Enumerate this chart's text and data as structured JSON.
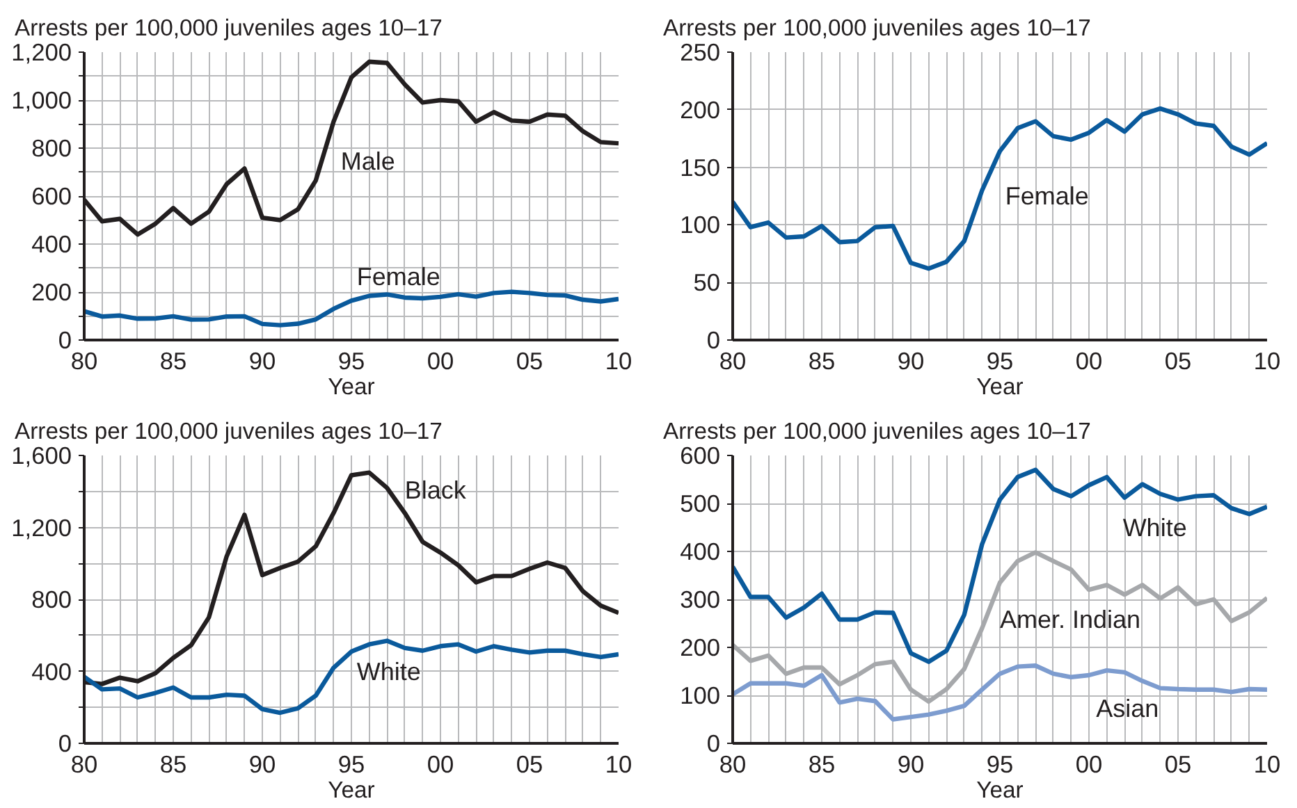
{
  "chart_data": [
    {
      "type": "line",
      "title": "Arrests per 100,000 juveniles ages 10–17",
      "xlabel": "Year",
      "grid": true,
      "legend": false,
      "marker": "none",
      "line_style": "solid",
      "x": [
        1980,
        1981,
        1982,
        1983,
        1984,
        1985,
        1986,
        1987,
        1988,
        1989,
        1990,
        1991,
        1992,
        1993,
        1994,
        1995,
        1996,
        1997,
        1998,
        1999,
        2000,
        2001,
        2002,
        2003,
        2004,
        2005,
        2006,
        2007,
        2008,
        2009,
        2010
      ],
      "xlim": [
        1980,
        2010
      ],
      "xticks": [
        {
          "value": 1980,
          "label": "80"
        },
        {
          "value": 1981,
          "label": null
        },
        {
          "value": 1982,
          "label": null
        },
        {
          "value": 1983,
          "label": null
        },
        {
          "value": 1984,
          "label": null
        },
        {
          "value": 1985,
          "label": "85"
        },
        {
          "value": 1986,
          "label": null
        },
        {
          "value": 1987,
          "label": null
        },
        {
          "value": 1988,
          "label": null
        },
        {
          "value": 1989,
          "label": null
        },
        {
          "value": 1990,
          "label": "90"
        },
        {
          "value": 1991,
          "label": null
        },
        {
          "value": 1992,
          "label": null
        },
        {
          "value": 1993,
          "label": null
        },
        {
          "value": 1994,
          "label": null
        },
        {
          "value": 1995,
          "label": "95"
        },
        {
          "value": 1996,
          "label": null
        },
        {
          "value": 1997,
          "label": null
        },
        {
          "value": 1998,
          "label": null
        },
        {
          "value": 1999,
          "label": null
        },
        {
          "value": 2000,
          "label": "00"
        },
        {
          "value": 2001,
          "label": null
        },
        {
          "value": 2002,
          "label": null
        },
        {
          "value": 2003,
          "label": null
        },
        {
          "value": 2004,
          "label": null
        },
        {
          "value": 2005,
          "label": "05"
        },
        {
          "value": 2006,
          "label": null
        },
        {
          "value": 2007,
          "label": null
        },
        {
          "value": 2008,
          "label": null
        },
        {
          "value": 2009,
          "label": null
        },
        {
          "value": 2010,
          "label": "10"
        }
      ],
      "ylim": [
        0,
        1200
      ],
      "yticks": [
        0,
        {
          "value": 100,
          "label": null
        },
        {
          "value": 200,
          "label": "200"
        },
        {
          "value": 300,
          "label": null
        },
        {
          "value": 400,
          "label": "400"
        },
        {
          "value": 500,
          "label": null
        },
        {
          "value": 600,
          "label": "600"
        },
        {
          "value": 700,
          "label": null
        },
        {
          "value": 800,
          "label": "800"
        },
        {
          "value": 900,
          "label": null
        },
        {
          "value": 1000,
          "label": "1,000"
        },
        {
          "value": 1100,
          "label": null
        },
        {
          "value": 1200,
          "label": "1,200"
        }
      ],
      "series": [
        {
          "name": "Male",
          "color": "#231f20",
          "values": [
            585,
            495,
            505,
            440,
            485,
            550,
            485,
            535,
            650,
            715,
            510,
            500,
            545,
            665,
            910,
            1095,
            1160,
            1155,
            1065,
            990,
            1000,
            995,
            910,
            950,
            915,
            910,
            940,
            935,
            870,
            825,
            820
          ]
        },
        {
          "name": "Female",
          "color": "#0a5a9c",
          "values": [
            120,
            98,
            102,
            89,
            90,
            99,
            85,
            86,
            98,
            99,
            67,
            62,
            68,
            86,
            130,
            164,
            184,
            190,
            177,
            174,
            180,
            191,
            181,
            196,
            201,
            196,
            188,
            186,
            168,
            161,
            171
          ]
        }
      ]
    },
    {
      "type": "line",
      "title": "Arrests per 100,000 juveniles ages 10–17",
      "xlabel": "Year",
      "grid": true,
      "legend": false,
      "marker": "none",
      "line_style": "solid",
      "x": [
        1980,
        1981,
        1982,
        1983,
        1984,
        1985,
        1986,
        1987,
        1988,
        1989,
        1990,
        1991,
        1992,
        1993,
        1994,
        1995,
        1996,
        1997,
        1998,
        1999,
        2000,
        2001,
        2002,
        2003,
        2004,
        2005,
        2006,
        2007,
        2008,
        2009,
        2010
      ],
      "xlim": [
        1980,
        2010
      ],
      "xticks": [
        {
          "value": 1980,
          "label": "80"
        },
        {
          "value": 1981,
          "label": null
        },
        {
          "value": 1982,
          "label": null
        },
        {
          "value": 1983,
          "label": null
        },
        {
          "value": 1984,
          "label": null
        },
        {
          "value": 1985,
          "label": "85"
        },
        {
          "value": 1986,
          "label": null
        },
        {
          "value": 1987,
          "label": null
        },
        {
          "value": 1988,
          "label": null
        },
        {
          "value": 1989,
          "label": null
        },
        {
          "value": 1990,
          "label": "90"
        },
        {
          "value": 1991,
          "label": null
        },
        {
          "value": 1992,
          "label": null
        },
        {
          "value": 1993,
          "label": null
        },
        {
          "value": 1994,
          "label": null
        },
        {
          "value": 1995,
          "label": "95"
        },
        {
          "value": 1996,
          "label": null
        },
        {
          "value": 1997,
          "label": null
        },
        {
          "value": 1998,
          "label": null
        },
        {
          "value": 1999,
          "label": null
        },
        {
          "value": 2000,
          "label": "00"
        },
        {
          "value": 2001,
          "label": null
        },
        {
          "value": 2002,
          "label": null
        },
        {
          "value": 2003,
          "label": null
        },
        {
          "value": 2004,
          "label": null
        },
        {
          "value": 2005,
          "label": "05"
        },
        {
          "value": 2006,
          "label": null
        },
        {
          "value": 2007,
          "label": null
        },
        {
          "value": 2008,
          "label": null
        },
        {
          "value": 2009,
          "label": null
        },
        {
          "value": 2010,
          "label": "10"
        }
      ],
      "ylim": [
        0,
        250
      ],
      "yticks": [
        0,
        50,
        100,
        150,
        200,
        250
      ],
      "series": [
        {
          "name": "Female",
          "color": "#0a5a9c",
          "values": [
            120,
            98,
            102,
            89,
            90,
            99,
            85,
            86,
            98,
            99,
            67,
            62,
            68,
            86,
            130,
            164,
            184,
            190,
            177,
            174,
            180,
            191,
            181,
            196,
            201,
            196,
            188,
            186,
            168,
            161,
            171
          ]
        }
      ]
    },
    {
      "type": "line",
      "title": "Arrests per 100,000 juveniles ages 10–17",
      "xlabel": "Year",
      "grid": true,
      "legend": false,
      "marker": "none",
      "line_style": "solid",
      "x": [
        1980,
        1981,
        1982,
        1983,
        1984,
        1985,
        1986,
        1987,
        1988,
        1989,
        1990,
        1991,
        1992,
        1993,
        1994,
        1995,
        1996,
        1997,
        1998,
        1999,
        2000,
        2001,
        2002,
        2003,
        2004,
        2005,
        2006,
        2007,
        2008,
        2009,
        2010
      ],
      "xlim": [
        1980,
        2010
      ],
      "xticks": [
        {
          "value": 1980,
          "label": "80"
        },
        {
          "value": 1981,
          "label": null
        },
        {
          "value": 1982,
          "label": null
        },
        {
          "value": 1983,
          "label": null
        },
        {
          "value": 1984,
          "label": null
        },
        {
          "value": 1985,
          "label": "85"
        },
        {
          "value": 1986,
          "label": null
        },
        {
          "value": 1987,
          "label": null
        },
        {
          "value": 1988,
          "label": null
        },
        {
          "value": 1989,
          "label": null
        },
        {
          "value": 1990,
          "label": "90"
        },
        {
          "value": 1991,
          "label": null
        },
        {
          "value": 1992,
          "label": null
        },
        {
          "value": 1993,
          "label": null
        },
        {
          "value": 1994,
          "label": null
        },
        {
          "value": 1995,
          "label": "95"
        },
        {
          "value": 1996,
          "label": null
        },
        {
          "value": 1997,
          "label": null
        },
        {
          "value": 1998,
          "label": null
        },
        {
          "value": 1999,
          "label": null
        },
        {
          "value": 2000,
          "label": "00"
        },
        {
          "value": 2001,
          "label": null
        },
        {
          "value": 2002,
          "label": null
        },
        {
          "value": 2003,
          "label": null
        },
        {
          "value": 2004,
          "label": null
        },
        {
          "value": 2005,
          "label": "05"
        },
        {
          "value": 2006,
          "label": null
        },
        {
          "value": 2007,
          "label": null
        },
        {
          "value": 2008,
          "label": null
        },
        {
          "value": 2009,
          "label": null
        },
        {
          "value": 2010,
          "label": "10"
        }
      ],
      "ylim": [
        0,
        1600
      ],
      "yticks": [
        0,
        {
          "value": 200,
          "label": null
        },
        {
          "value": 400,
          "label": "400"
        },
        {
          "value": 600,
          "label": null
        },
        {
          "value": 800,
          "label": "800"
        },
        {
          "value": 1000,
          "label": null
        },
        {
          "value": 1200,
          "label": "1,200"
        },
        {
          "value": 1400,
          "label": null
        },
        {
          "value": 1600,
          "label": "1,600"
        }
      ],
      "series": [
        {
          "name": "Black",
          "color": "#231f20",
          "values": [
            340,
            330,
            365,
            345,
            390,
            475,
            545,
            700,
            1040,
            1270,
            935,
            975,
            1010,
            1095,
            1280,
            1490,
            1505,
            1420,
            1280,
            1120,
            1060,
            990,
            895,
            930,
            930,
            970,
            1005,
            975,
            845,
            765,
            725
          ]
        },
        {
          "name": "White",
          "color": "#0a5a9c",
          "values": [
            370,
            300,
            305,
            255,
            280,
            310,
            255,
            255,
            270,
            265,
            190,
            170,
            195,
            265,
            420,
            510,
            550,
            570,
            530,
            515,
            540,
            550,
            510,
            540,
            520,
            505,
            515,
            515,
            495,
            480,
            495
          ]
        }
      ]
    },
    {
      "type": "line",
      "title": "Arrests per 100,000 juveniles ages 10–17",
      "xlabel": "Year",
      "grid": true,
      "legend": false,
      "marker": "none",
      "line_style": "solid",
      "x": [
        1980,
        1981,
        1982,
        1983,
        1984,
        1985,
        1986,
        1987,
        1988,
        1989,
        1990,
        1991,
        1992,
        1993,
        1994,
        1995,
        1996,
        1997,
        1998,
        1999,
        2000,
        2001,
        2002,
        2003,
        2004,
        2005,
        2006,
        2007,
        2008,
        2009,
        2010
      ],
      "xlim": [
        1980,
        2010
      ],
      "xticks": [
        {
          "value": 1980,
          "label": "80"
        },
        {
          "value": 1981,
          "label": null
        },
        {
          "value": 1982,
          "label": null
        },
        {
          "value": 1983,
          "label": null
        },
        {
          "value": 1984,
          "label": null
        },
        {
          "value": 1985,
          "label": "85"
        },
        {
          "value": 1986,
          "label": null
        },
        {
          "value": 1987,
          "label": null
        },
        {
          "value": 1988,
          "label": null
        },
        {
          "value": 1989,
          "label": null
        },
        {
          "value": 1990,
          "label": "90"
        },
        {
          "value": 1991,
          "label": null
        },
        {
          "value": 1992,
          "label": null
        },
        {
          "value": 1993,
          "label": null
        },
        {
          "value": 1994,
          "label": null
        },
        {
          "value": 1995,
          "label": "95"
        },
        {
          "value": 1996,
          "label": null
        },
        {
          "value": 1997,
          "label": null
        },
        {
          "value": 1998,
          "label": null
        },
        {
          "value": 1999,
          "label": null
        },
        {
          "value": 2000,
          "label": "00"
        },
        {
          "value": 2001,
          "label": null
        },
        {
          "value": 2002,
          "label": null
        },
        {
          "value": 2003,
          "label": null
        },
        {
          "value": 2004,
          "label": null
        },
        {
          "value": 2005,
          "label": "05"
        },
        {
          "value": 2006,
          "label": null
        },
        {
          "value": 2007,
          "label": null
        },
        {
          "value": 2008,
          "label": null
        },
        {
          "value": 2009,
          "label": null
        },
        {
          "value": 2010,
          "label": "10"
        }
      ],
      "ylim": [
        0,
        600
      ],
      "yticks": [
        0,
        100,
        200,
        300,
        400,
        500,
        600
      ],
      "series": [
        {
          "name": "White",
          "color": "#0a5a9c",
          "values": [
            368,
            305,
            305,
            262,
            283,
            312,
            258,
            258,
            273,
            272,
            188,
            170,
            193,
            268,
            415,
            508,
            555,
            570,
            530,
            515,
            538,
            555,
            512,
            540,
            520,
            508,
            515,
            517,
            490,
            478,
            493
          ]
        },
        {
          "name": "Amer. Indian",
          "color": "#a6a8ab",
          "values": [
            205,
            172,
            183,
            145,
            158,
            158,
            123,
            142,
            165,
            170,
            112,
            87,
            113,
            155,
            240,
            335,
            380,
            398,
            380,
            362,
            320,
            330,
            310,
            330,
            302,
            325,
            290,
            300,
            255,
            273,
            303
          ]
        },
        {
          "name": "Asian",
          "color": "#7d9ccf",
          "values": [
            102,
            125,
            125,
            125,
            120,
            142,
            85,
            93,
            88,
            50,
            55,
            60,
            68,
            78,
            112,
            145,
            160,
            162,
            145,
            138,
            142,
            152,
            148,
            130,
            115,
            113,
            112,
            112,
            107,
            113,
            112
          ]
        }
      ]
    }
  ]
}
